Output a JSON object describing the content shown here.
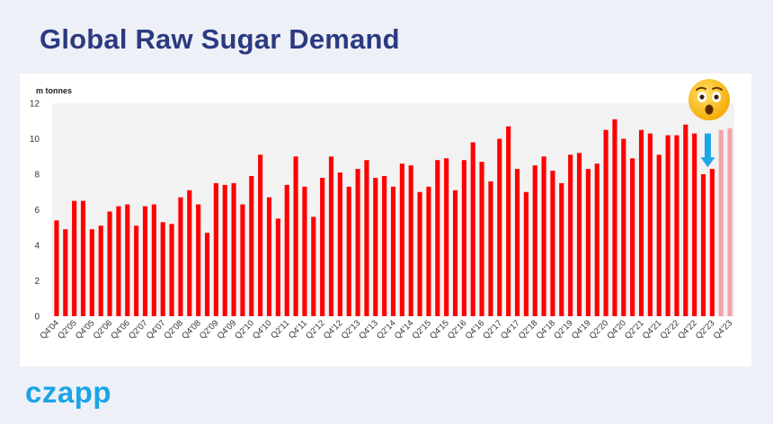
{
  "page": {
    "title": "Global Raw Sugar Demand",
    "brand": "czapp"
  },
  "colors": {
    "title": "#2b3a80",
    "bar": "#ff0000",
    "forecast_bar": "#f4a3a8",
    "plot_bg": "#f2f2f2",
    "arrow": "#1ea7e8",
    "brand": "#1aa5e5"
  },
  "icons": {
    "emoji": "astonished-face-icon",
    "arrow": "down-arrow-icon"
  },
  "chart_data": {
    "type": "bar",
    "title": "",
    "ylabel": "m tonnes",
    "xlabel": "",
    "ylim": [
      0,
      12
    ],
    "yticks": [
      0,
      2,
      4,
      6,
      8,
      10,
      12
    ],
    "grid": false,
    "legend": "none",
    "categories": [
      "Q4'04",
      "Q1'05",
      "Q2'05",
      "Q3'05",
      "Q4'05",
      "Q1'06",
      "Q2'06",
      "Q3'06",
      "Q4'06",
      "Q1'07",
      "Q2'07",
      "Q3'07",
      "Q4'07",
      "Q1'08",
      "Q2'08",
      "Q3'08",
      "Q4'08",
      "Q1'09",
      "Q2'09",
      "Q3'09",
      "Q4'09",
      "Q1'10",
      "Q2'10",
      "Q3'10",
      "Q4'10",
      "Q1'11",
      "Q2'11",
      "Q3'11",
      "Q4'11",
      "Q1'12",
      "Q2'12",
      "Q3'12",
      "Q4'12",
      "Q1'13",
      "Q2'13",
      "Q3'13",
      "Q4'13",
      "Q1'14",
      "Q2'14",
      "Q3'14",
      "Q4'14",
      "Q1'15",
      "Q2'15",
      "Q3'15",
      "Q4'15",
      "Q1'16",
      "Q2'16",
      "Q3'16",
      "Q4'16",
      "Q1'17",
      "Q2'17",
      "Q3'17",
      "Q4'17",
      "Q1'18",
      "Q2'18",
      "Q3'18",
      "Q4'18",
      "Q1'19",
      "Q2'19",
      "Q3'19",
      "Q4'19",
      "Q1'20",
      "Q2'20",
      "Q3'20",
      "Q4'20",
      "Q1'21",
      "Q2'21",
      "Q3'21",
      "Q4'21",
      "Q1'22",
      "Q2'22",
      "Q3'22",
      "Q4'22",
      "Q1'23",
      "Q2'23",
      "Q3'23",
      "Q4'23"
    ],
    "visible_tick_labels": [
      "Q4'04",
      "Q2'05",
      "Q4'05",
      "Q2'06",
      "Q4'06",
      "Q2'07",
      "Q4'07",
      "Q2'08",
      "Q4'08",
      "Q2'09",
      "Q4'09",
      "Q2'10",
      "Q4'10",
      "Q2'11",
      "Q4'11",
      "Q2'12",
      "Q4'12",
      "Q2'13",
      "Q4'13",
      "Q2'14",
      "Q4'14",
      "Q2'15",
      "Q4'15",
      "Q2'16",
      "Q4'16",
      "Q2'17",
      "Q4'17",
      "Q2'18",
      "Q4'18",
      "Q2'19",
      "Q4'19",
      "Q2'20",
      "Q4'20",
      "Q2'21",
      "Q4'21",
      "Q2'22",
      "Q4'22",
      "Q2'23",
      "Q4'23"
    ],
    "values": [
      5.4,
      4.9,
      6.5,
      6.5,
      4.9,
      5.1,
      5.9,
      6.2,
      6.3,
      5.1,
      6.2,
      6.3,
      5.3,
      5.2,
      6.7,
      7.1,
      6.3,
      4.7,
      7.5,
      7.4,
      7.5,
      6.3,
      7.9,
      9.1,
      6.7,
      5.5,
      7.4,
      9.0,
      7.3,
      5.6,
      7.8,
      9.0,
      8.1,
      7.3,
      8.3,
      8.8,
      7.8,
      7.9,
      7.3,
      8.6,
      8.5,
      7.0,
      7.3,
      8.8,
      8.9,
      7.1,
      8.8,
      9.8,
      8.7,
      7.6,
      10.0,
      10.7,
      8.3,
      7.0,
      8.5,
      9.0,
      8.2,
      7.5,
      9.1,
      9.2,
      8.3,
      8.6,
      10.5,
      11.1,
      10.0,
      8.9,
      10.5,
      10.3,
      9.1,
      10.2,
      10.2,
      10.8,
      10.3,
      8.0,
      8.3,
      10.5,
      10.6
    ],
    "forecast_start_index": 75,
    "annotation": {
      "type": "down-arrow",
      "from_value": 10.3,
      "to_value": 8.4,
      "at_category": "Q2'23"
    }
  }
}
